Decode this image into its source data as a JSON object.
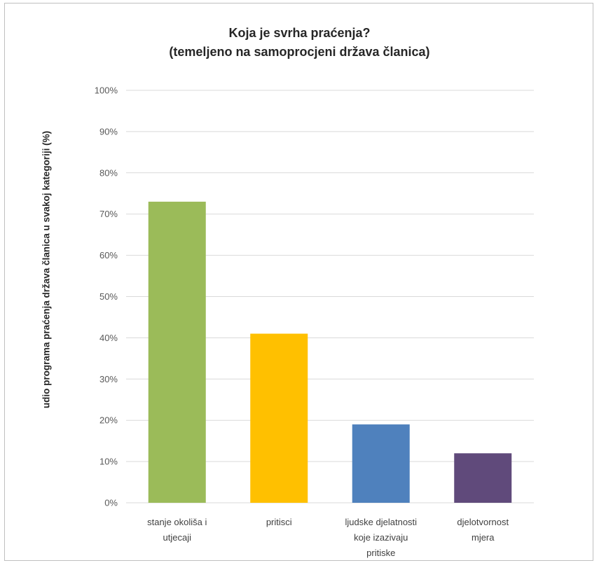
{
  "chart_data": {
    "type": "bar",
    "title": "Koja je svrha praćenja?",
    "subtitle": "(temeljeno na samoprocjeni država članica)",
    "ylabel": "udio programa praćenja država članica u svakoj kategoriji (%)",
    "xlabel": "",
    "ylim": [
      0,
      100
    ],
    "yticks": [
      "0%",
      "10%",
      "20%",
      "30%",
      "40%",
      "50%",
      "60%",
      "70%",
      "80%",
      "90%",
      "100%"
    ],
    "grid": true,
    "categories": [
      [
        "stanje okoliša i",
        "utjecaji"
      ],
      [
        "pritisci"
      ],
      [
        "ljudske djelatnosti",
        "koje izazivaju",
        "pritiske"
      ],
      [
        "djelotvornost",
        "mjera"
      ]
    ],
    "values": [
      73,
      41,
      19,
      12
    ],
    "colors": [
      "#9bbb59",
      "#ffc000",
      "#4f81bd",
      "#604a7b"
    ],
    "axis_color": "#d9d9d9"
  }
}
